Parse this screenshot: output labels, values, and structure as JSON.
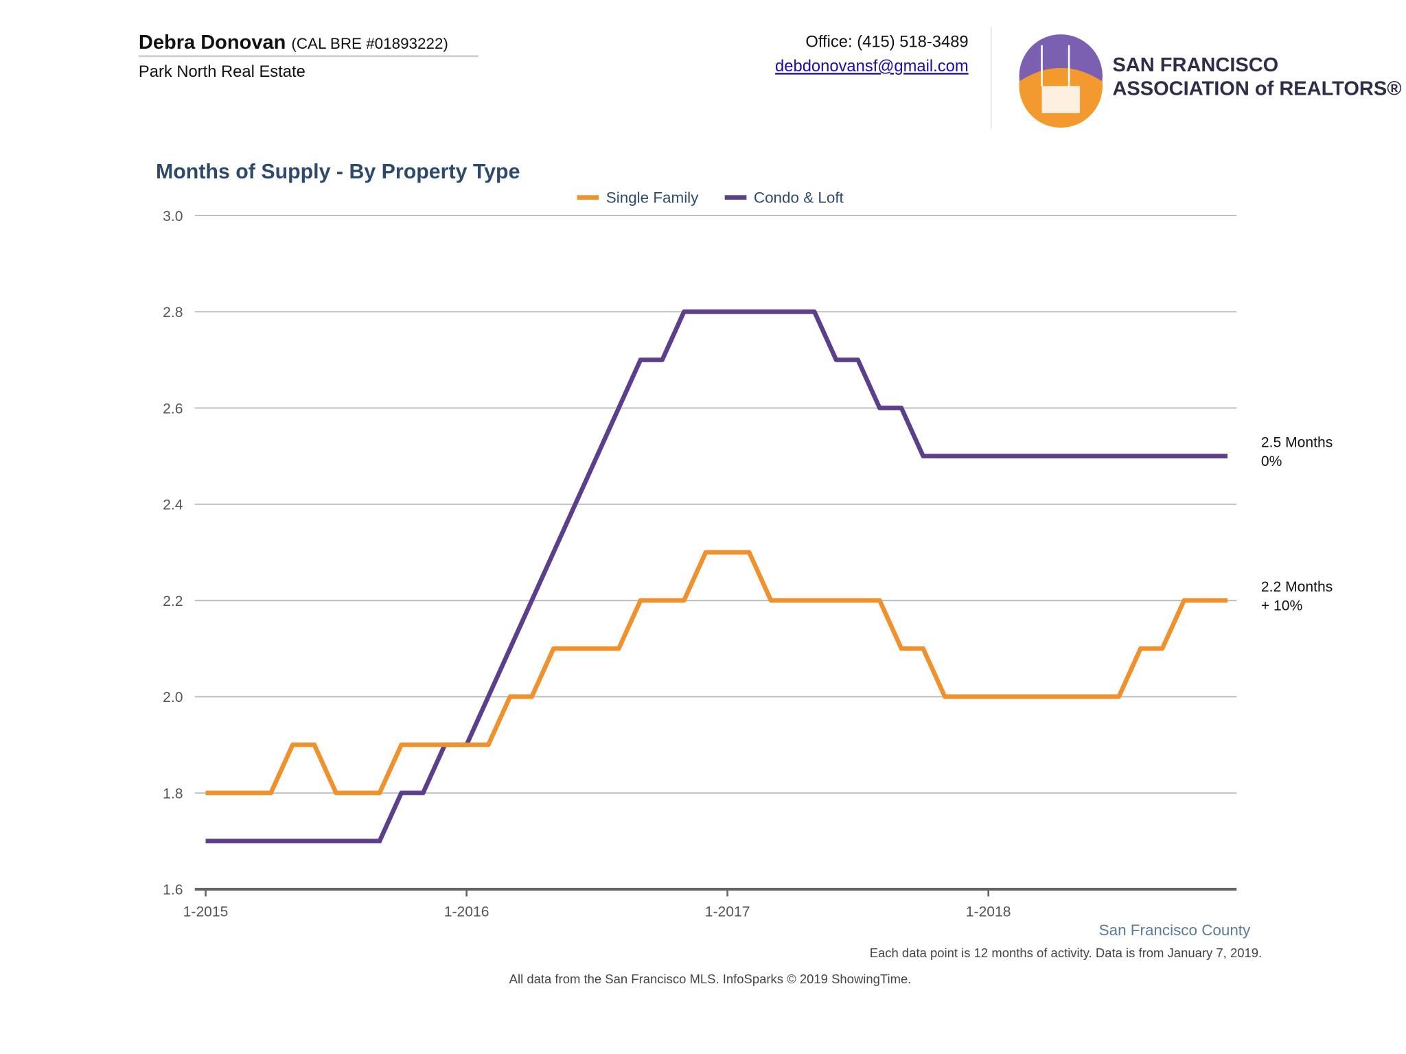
{
  "header": {
    "agent_name": "Debra Donovan",
    "license": "(CAL BRE #01893222)",
    "company": "Park North Real Estate",
    "office": "Office: (415) 518-3489",
    "email": "debdonovansf@gmail.com",
    "logo_line1": "SAN FRANCISCO",
    "logo_line2": "ASSOCIATION of REALTORS®"
  },
  "chart_data": {
    "type": "line",
    "title": "Months of Supply - By Property Type",
    "categories": [
      "1-2015",
      null,
      null,
      null,
      null,
      null,
      null,
      null,
      null,
      null,
      null,
      null,
      "1-2016",
      null,
      null,
      null,
      null,
      null,
      null,
      null,
      null,
      null,
      null,
      null,
      "1-2017",
      null,
      null,
      null,
      null,
      null,
      null,
      null,
      null,
      null,
      null,
      null,
      "1-2018",
      null,
      null,
      null,
      null,
      null,
      null,
      null,
      null,
      null,
      null,
      null
    ],
    "series": [
      {
        "name": "Single Family",
        "color": "#f0912b",
        "values": [
          1.8,
          1.8,
          1.8,
          1.8,
          1.9,
          1.9,
          1.8,
          1.8,
          1.8,
          1.9,
          1.9,
          1.9,
          1.9,
          1.9,
          2.0,
          2.0,
          2.1,
          2.1,
          2.1,
          2.1,
          2.2,
          2.2,
          2.2,
          2.3,
          2.3,
          2.3,
          2.2,
          2.2,
          2.2,
          2.2,
          2.2,
          2.2,
          2.1,
          2.1,
          2.0,
          2.0,
          2.0,
          2.0,
          2.0,
          2.0,
          2.0,
          2.0,
          2.0,
          2.1,
          2.1,
          2.2,
          2.2,
          2.2
        ],
        "end_label": "2.2 Months",
        "end_change": "+ 10%"
      },
      {
        "name": "Condo & Loft",
        "color": "#5b3f8c",
        "values": [
          1.7,
          1.7,
          1.7,
          1.7,
          1.7,
          1.7,
          1.7,
          1.7,
          1.7,
          1.8,
          1.8,
          1.9,
          1.9,
          2.0,
          2.1,
          2.2,
          2.3,
          2.4,
          2.5,
          2.6,
          2.7,
          2.7,
          2.8,
          2.8,
          2.8,
          2.8,
          2.8,
          2.8,
          2.8,
          2.7,
          2.7,
          2.6,
          2.6,
          2.5,
          2.5,
          2.5,
          2.5,
          2.5,
          2.5,
          2.5,
          2.5,
          2.5,
          2.5,
          2.5,
          2.5,
          2.5,
          2.5,
          2.5
        ],
        "end_label": "2.5 Months",
        "end_change": "0%"
      }
    ],
    "ylim": [
      1.6,
      3.0
    ],
    "yticks": [
      1.6,
      1.8,
      {
        "value": 2,
        "label": "2.0"
      },
      2.2,
      2.4,
      2.6,
      2.8,
      {
        "value": 3,
        "label": "3.0"
      }
    ],
    "grid": true,
    "legend": "top",
    "region": "San Francisco County",
    "note": "Each data point is 12 months of activity. Data is from January 7, 2019.",
    "source": "All data from the San Francisco MLS. InfoSparks © 2019 ShowingTime."
  }
}
